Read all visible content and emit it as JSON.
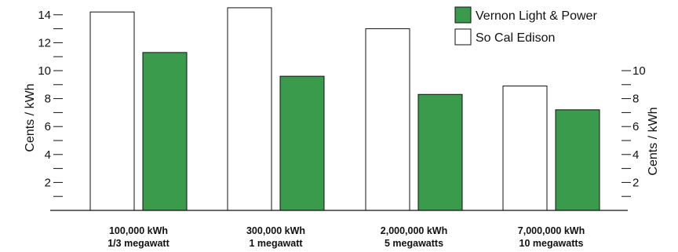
{
  "chart_data": {
    "type": "bar",
    "categories": [
      [
        "100,000 kWh",
        "1/3 megawatt"
      ],
      [
        "300,000 kWh",
        "1 megawatt"
      ],
      [
        "2,000,000 kWh",
        "5 megawatts"
      ],
      [
        "7,000,000 kWh",
        "10 megawatts"
      ]
    ],
    "series": [
      {
        "name": "So Cal Edison",
        "color": "#ffffff",
        "values": [
          14.2,
          14.5,
          13.0,
          8.9
        ]
      },
      {
        "name": "Vernon Light & Power",
        "color": "#3a9b4c",
        "values": [
          11.3,
          9.6,
          8.3,
          7.2
        ]
      }
    ],
    "legend": [
      {
        "label": "Vernon Light & Power",
        "color": "#3a9b4c"
      },
      {
        "label": "So Cal Edison",
        "color": "#ffffff"
      }
    ],
    "left_axis": {
      "label": "Cents / kWh",
      "range": [
        0,
        15
      ],
      "tick_labels": [
        "2",
        "4",
        "6",
        "8",
        "10",
        "12",
        "14"
      ]
    },
    "right_axis": {
      "label": "Cents / kWh",
      "range": [
        0,
        15
      ],
      "tick_labels": [
        "2",
        "4",
        "6",
        "8",
        "10"
      ]
    },
    "grid": false,
    "legend_position": "top-right"
  }
}
